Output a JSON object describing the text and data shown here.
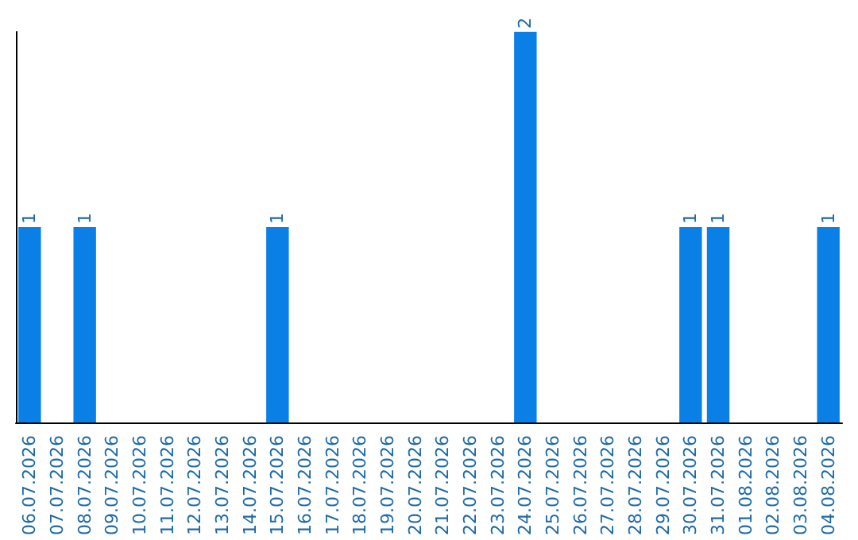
{
  "chart_data": {
    "type": "bar",
    "categories": [
      "06.07.2026",
      "07.07.2026",
      "08.07.2026",
      "09.07.2026",
      "10.07.2026",
      "11.07.2026",
      "12.07.2026",
      "13.07.2026",
      "14.07.2026",
      "15.07.2026",
      "16.07.2026",
      "17.07.2026",
      "18.07.2026",
      "19.07.2026",
      "20.07.2026",
      "21.07.2026",
      "22.07.2026",
      "23.07.2026",
      "24.07.2026",
      "25.07.2026",
      "26.07.2026",
      "27.07.2026",
      "28.07.2026",
      "29.07.2026",
      "30.07.2026",
      "31.07.2026",
      "01.08.2026",
      "02.08.2026",
      "03.08.2026",
      "04.08.2026"
    ],
    "values": [
      1,
      0,
      1,
      0,
      0,
      0,
      0,
      0,
      0,
      1,
      0,
      0,
      0,
      0,
      0,
      0,
      0,
      0,
      2,
      0,
      0,
      0,
      0,
      0,
      1,
      1,
      0,
      0,
      0,
      1
    ],
    "value_labels": [
      "1",
      null,
      "1",
      null,
      null,
      null,
      null,
      null,
      null,
      "1",
      null,
      null,
      null,
      null,
      null,
      null,
      null,
      null,
      "2",
      null,
      null,
      null,
      null,
      null,
      "1",
      "1",
      null,
      null,
      null,
      "1"
    ],
    "color": "#0a7fe6",
    "grid": false
  }
}
